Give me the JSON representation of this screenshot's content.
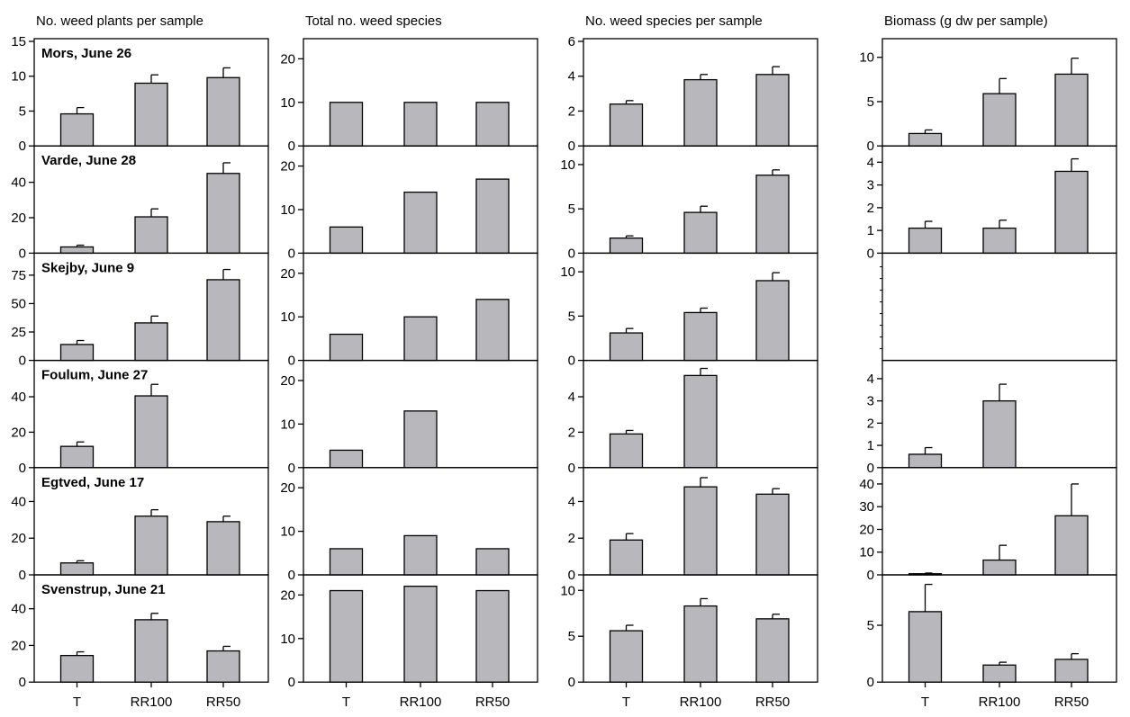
{
  "figure": {
    "categories": [
      "T",
      "RR100",
      "RR50"
    ],
    "colors": {
      "bar_fill": "#b8b8bc",
      "stroke": "#000000"
    }
  },
  "chart_data": [
    {
      "type": "bar",
      "title": "No. weed plants per sample",
      "categories": [
        "T",
        "RR100",
        "RR50"
      ],
      "panels": [
        {
          "site": "Mors, June 26",
          "ylim": [
            0,
            15
          ],
          "yticks": [
            0,
            5,
            10,
            15
          ],
          "values": [
            4.6,
            9.0,
            9.8
          ],
          "errors": [
            0.9,
            1.2,
            1.4
          ]
        },
        {
          "site": "Varde, June 28",
          "ylim": [
            0,
            59
          ],
          "yticks": [
            0,
            20,
            40
          ],
          "values": [
            3.5,
            20.5,
            45
          ],
          "errors": [
            1.0,
            4.5,
            6.0
          ]
        },
        {
          "site": "Skejby, June 9",
          "ylim": [
            0,
            92
          ],
          "yticks": [
            0,
            25,
            50,
            75
          ],
          "values": [
            14,
            33,
            71
          ],
          "errors": [
            3.5,
            6.0,
            9.0
          ]
        },
        {
          "site": "Foulum, June 27",
          "ylim": [
            0,
            59
          ],
          "yticks": [
            0,
            20,
            40
          ],
          "values": [
            12,
            40.5,
            null
          ],
          "errors": [
            2.5,
            6.5,
            null
          ]
        },
        {
          "site": "Egtved, June 17",
          "ylim": [
            0,
            57
          ],
          "yticks": [
            0,
            20,
            40
          ],
          "values": [
            6.5,
            32,
            29
          ],
          "errors": [
            1.2,
            3.5,
            3.0
          ]
        },
        {
          "site": "Svenstrup, June 21",
          "ylim": [
            0,
            57
          ],
          "yticks": [
            0,
            20,
            40
          ],
          "values": [
            14.5,
            34,
            17
          ],
          "errors": [
            2.0,
            3.5,
            2.5
          ]
        }
      ]
    },
    {
      "type": "bar",
      "title": "Total no. weed species",
      "categories": [
        "T",
        "RR100",
        "RR50"
      ],
      "panels": [
        {
          "site": "Mors, June 26",
          "ylim": [
            0,
            24
          ],
          "yticks": [
            0,
            10,
            20
          ],
          "values": [
            10,
            10,
            10
          ],
          "errors": [
            null,
            null,
            null
          ]
        },
        {
          "site": "Varde, June 28",
          "ylim": [
            0,
            24
          ],
          "yticks": [
            0,
            10,
            20
          ],
          "values": [
            6,
            14,
            17
          ],
          "errors": [
            null,
            null,
            null
          ]
        },
        {
          "site": "Skejby, June 9",
          "ylim": [
            0,
            24
          ],
          "yticks": [
            0,
            10,
            20
          ],
          "values": [
            6,
            10,
            14
          ],
          "errors": [
            null,
            null,
            null
          ]
        },
        {
          "site": "Foulum, June 27",
          "ylim": [
            0,
            24
          ],
          "yticks": [
            0,
            10,
            20
          ],
          "values": [
            4,
            13,
            null
          ],
          "errors": [
            null,
            null,
            null
          ]
        },
        {
          "site": "Egtved, June 17",
          "ylim": [
            0,
            24
          ],
          "yticks": [
            0,
            10,
            20
          ],
          "values": [
            6,
            9,
            6
          ],
          "errors": [
            null,
            null,
            null
          ]
        },
        {
          "site": "Svenstrup, June 21",
          "ylim": [
            0,
            24
          ],
          "yticks": [
            0,
            10,
            20
          ],
          "values": [
            21,
            22,
            21
          ],
          "errors": [
            null,
            null,
            null
          ]
        }
      ]
    },
    {
      "type": "bar",
      "title": "No. weed species per sample",
      "categories": [
        "T",
        "RR100",
        "RR50"
      ],
      "panels": [
        {
          "site": "Mors, June 26",
          "ylim": [
            0,
            6
          ],
          "yticks": [
            0,
            2,
            4,
            6
          ],
          "values": [
            2.4,
            3.8,
            4.1
          ],
          "errors": [
            0.2,
            0.3,
            0.45
          ]
        },
        {
          "site": "Varde, June 28",
          "ylim": [
            0,
            11.8
          ],
          "yticks": [
            0,
            5,
            10
          ],
          "values": [
            1.7,
            4.6,
            8.8
          ],
          "errors": [
            0.25,
            0.7,
            0.6
          ]
        },
        {
          "site": "Skejby, June 9",
          "ylim": [
            0,
            11.8
          ],
          "yticks": [
            0,
            5,
            10
          ],
          "values": [
            3.1,
            5.4,
            9.0
          ],
          "errors": [
            0.5,
            0.5,
            0.9
          ]
        },
        {
          "site": "Foulum, June 27",
          "ylim": [
            0,
            5.9
          ],
          "yticks": [
            0,
            2,
            4
          ],
          "values": [
            1.9,
            5.2,
            null
          ],
          "errors": [
            0.2,
            0.4,
            null
          ]
        },
        {
          "site": "Egtved, June 17",
          "ylim": [
            0,
            5.7
          ],
          "yticks": [
            0,
            2,
            4
          ],
          "values": [
            1.9,
            4.8,
            4.4
          ],
          "errors": [
            0.35,
            0.5,
            0.3
          ]
        },
        {
          "site": "Svenstrup, June 21",
          "ylim": [
            0,
            11.4
          ],
          "yticks": [
            0,
            5,
            10
          ],
          "values": [
            5.6,
            8.3,
            6.9
          ],
          "errors": [
            0.6,
            0.8,
            0.5
          ]
        }
      ]
    },
    {
      "type": "bar",
      "title": "Biomass (g dw per sample)",
      "categories": [
        "T",
        "RR100",
        "RR50"
      ],
      "panels": [
        {
          "site": "Mors, June 26",
          "ylim": [
            0,
            11.8
          ],
          "yticks": [
            0,
            5,
            10
          ],
          "values": [
            1.4,
            5.9,
            8.1
          ],
          "errors": [
            0.4,
            1.7,
            1.8
          ]
        },
        {
          "site": "Varde, June 28",
          "ylim": [
            0,
            4.6
          ],
          "yticks": [
            0,
            1,
            2,
            3,
            4
          ],
          "values": [
            1.1,
            1.1,
            3.6
          ],
          "errors": [
            0.3,
            0.35,
            0.55
          ]
        },
        {
          "site": "Skejby, June 9",
          "ylim": [
            0,
            1
          ],
          "yticks": [],
          "values": [
            null,
            null,
            null
          ],
          "errors": [
            null,
            null,
            null
          ]
        },
        {
          "site": "Foulum, June 27",
          "ylim": [
            0,
            4.7
          ],
          "yticks": [
            0,
            1,
            2,
            3,
            4
          ],
          "values": [
            0.6,
            3.0,
            null
          ],
          "errors": [
            0.3,
            0.75,
            null
          ]
        },
        {
          "site": "Egtved, June 17",
          "ylim": [
            0,
            46
          ],
          "yticks": [
            0,
            10,
            20,
            30,
            40
          ],
          "values": [
            0.5,
            6.5,
            26
          ],
          "errors": [
            0.3,
            6.5,
            14
          ]
        },
        {
          "site": "Svenstrup, June 21",
          "ylim": [
            0,
            9.2
          ],
          "yticks": [
            0,
            5
          ],
          "values": [
            6.2,
            1.5,
            2.0
          ],
          "errors": [
            2.4,
            0.25,
            0.5
          ]
        }
      ]
    }
  ]
}
